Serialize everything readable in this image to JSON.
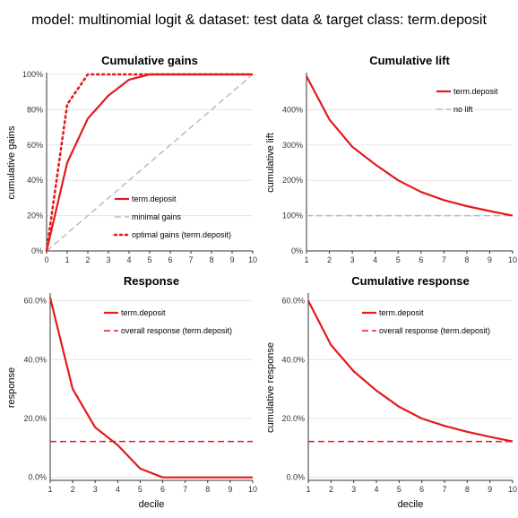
{
  "main_title": "model: multinomial logit  &  dataset: test data  &  target class: term.deposit",
  "colors": {
    "series": "#e41a1c",
    "reference": "#bbbbbb",
    "grid": "#e6e6e6"
  },
  "chart_data": [
    {
      "id": "gains",
      "type": "line",
      "title": "Cumulative gains",
      "xlabel": "",
      "ylabel": "cumulative gains",
      "xlim": [
        0,
        10
      ],
      "ylim": [
        0,
        1
      ],
      "x_ticks": [
        "0",
        "1",
        "2",
        "3",
        "4",
        "5",
        "6",
        "7",
        "8",
        "9",
        "10"
      ],
      "y_ticks": [
        {
          "v": 0,
          "label": "0%"
        },
        {
          "v": 0.2,
          "label": "20%"
        },
        {
          "v": 0.4,
          "label": "40%"
        },
        {
          "v": 0.6,
          "label": "60%"
        },
        {
          "v": 0.8,
          "label": "80%"
        },
        {
          "v": 1.0,
          "label": "100%"
        }
      ],
      "legend_position": "bottom-right",
      "series": [
        {
          "name": "term.deposit",
          "style": "solid",
          "color": "#e41a1c",
          "x": [
            0,
            1,
            2,
            3,
            4,
            5,
            6,
            7,
            8,
            9,
            10
          ],
          "y": [
            0,
            0.5,
            0.75,
            0.88,
            0.97,
            1.0,
            1.0,
            1.0,
            1.0,
            1.0,
            1.0
          ]
        },
        {
          "name": "minimal gains",
          "style": "dashed",
          "color": "#bbbbbb",
          "x": [
            0,
            10
          ],
          "y": [
            0,
            1.0
          ]
        },
        {
          "name": "optimal gains (term.deposit)",
          "style": "dotted",
          "color": "#e41a1c",
          "x": [
            0,
            1,
            2,
            3,
            4,
            5,
            6,
            7,
            8,
            9,
            10
          ],
          "y": [
            0,
            0.83,
            1.0,
            1.0,
            1.0,
            1.0,
            1.0,
            1.0,
            1.0,
            1.0,
            1.0
          ]
        }
      ]
    },
    {
      "id": "lift",
      "type": "line",
      "title": "Cumulative lift",
      "xlabel": "",
      "ylabel": "cumulative lift",
      "xlim": [
        1,
        10
      ],
      "ylim": [
        0,
        5
      ],
      "x_ticks": [
        "1",
        "2",
        "3",
        "4",
        "5",
        "6",
        "7",
        "8",
        "9",
        "10"
      ],
      "y_ticks": [
        {
          "v": 0,
          "label": "0%"
        },
        {
          "v": 1,
          "label": "100%"
        },
        {
          "v": 2,
          "label": "200%"
        },
        {
          "v": 3,
          "label": "300%"
        },
        {
          "v": 4,
          "label": "400%"
        }
      ],
      "legend_position": "top-right",
      "series": [
        {
          "name": "term.deposit",
          "style": "solid",
          "color": "#e41a1c",
          "x": [
            1,
            2,
            3,
            4,
            5,
            6,
            7,
            8,
            9,
            10
          ],
          "y": [
            4.95,
            3.72,
            2.95,
            2.45,
            2.0,
            1.67,
            1.44,
            1.27,
            1.13,
            1.0
          ]
        },
        {
          "name": "no lift",
          "style": "dashed",
          "color": "#bbbbbb",
          "x": [
            1,
            10
          ],
          "y": [
            1,
            1
          ]
        }
      ]
    },
    {
      "id": "response",
      "type": "line",
      "title": "Response",
      "xlabel": "decile",
      "ylabel": "response",
      "xlim": [
        1,
        10
      ],
      "ylim": [
        -0.01,
        0.62
      ],
      "x_ticks": [
        "1",
        "2",
        "3",
        "4",
        "5",
        "6",
        "7",
        "8",
        "9",
        "10"
      ],
      "y_ticks": [
        {
          "v": 0,
          "label": "0.0%"
        },
        {
          "v": 0.2,
          "label": "20.0%"
        },
        {
          "v": 0.4,
          "label": "40.0%"
        },
        {
          "v": 0.6,
          "label": "60.0%"
        }
      ],
      "legend_position": "top-right",
      "series": [
        {
          "name": "term.deposit",
          "style": "solid",
          "color": "#e41a1c",
          "x": [
            1,
            2,
            3,
            4,
            5,
            6,
            7,
            8,
            9,
            10
          ],
          "y": [
            0.61,
            0.3,
            0.17,
            0.11,
            0.03,
            0.0,
            0.0,
            0.0,
            0.0,
            0.0
          ]
        },
        {
          "name": "overall response (term.deposit)",
          "style": "dashed",
          "color": "#e41a1c",
          "x": [
            1,
            10
          ],
          "y": [
            0.122,
            0.122
          ]
        }
      ]
    },
    {
      "id": "cumresponse",
      "type": "line",
      "title": "Cumulative response",
      "xlabel": "decile",
      "ylabel": "cumulative response",
      "xlim": [
        1,
        10
      ],
      "ylim": [
        -0.01,
        0.62
      ],
      "x_ticks": [
        "1",
        "2",
        "3",
        "4",
        "5",
        "6",
        "7",
        "8",
        "9",
        "10"
      ],
      "y_ticks": [
        {
          "v": 0,
          "label": "0.0%"
        },
        {
          "v": 0.2,
          "label": "20.0%"
        },
        {
          "v": 0.4,
          "label": "40.0%"
        },
        {
          "v": 0.6,
          "label": "60.0%"
        }
      ],
      "legend_position": "top-right",
      "series": [
        {
          "name": "term.deposit",
          "style": "solid",
          "color": "#e41a1c",
          "x": [
            1,
            2,
            3,
            4,
            5,
            6,
            7,
            8,
            9,
            10
          ],
          "y": [
            0.6,
            0.45,
            0.36,
            0.295,
            0.24,
            0.2,
            0.175,
            0.155,
            0.138,
            0.122
          ]
        },
        {
          "name": "overall response (term.deposit)",
          "style": "dashed",
          "color": "#e41a1c",
          "x": [
            1,
            10
          ],
          "y": [
            0.122,
            0.122
          ]
        }
      ]
    }
  ]
}
